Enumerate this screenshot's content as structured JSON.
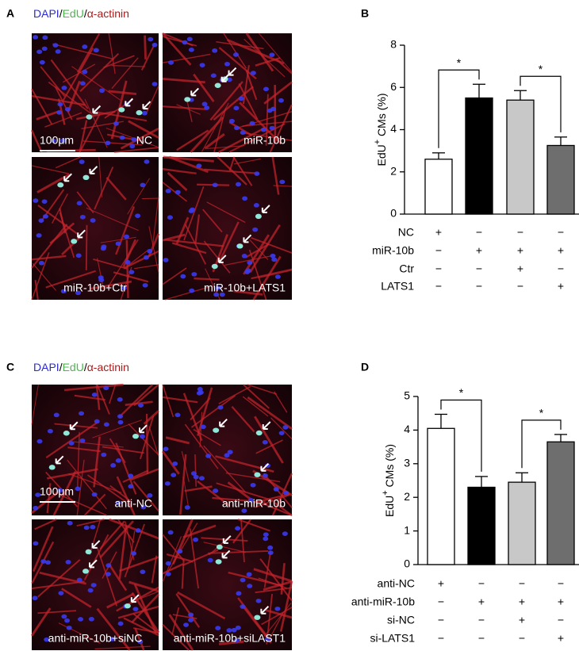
{
  "panels": [
    {
      "letter": "A",
      "legend": [
        {
          "text": "DAPI",
          "color": "#2a2ad0"
        },
        {
          "text": "/",
          "color": "#000000"
        },
        {
          "text": "EdU",
          "color": "#4cb84c"
        },
        {
          "text": "/",
          "color": "#000000"
        },
        {
          "text": "α-actinin",
          "color": "#b01818"
        }
      ],
      "scale_bar": "100μm",
      "images": [
        {
          "label": "NC"
        },
        {
          "label": "miR-10b"
        },
        {
          "label": "miR-10b+Ctr"
        },
        {
          "label": "miR-10b+LATS1"
        }
      ]
    },
    {
      "letter": "C",
      "legend": [
        {
          "text": "DAPI",
          "color": "#2a2ad0"
        },
        {
          "text": "/",
          "color": "#000000"
        },
        {
          "text": "EdU",
          "color": "#4cb84c"
        },
        {
          "text": "/",
          "color": "#000000"
        },
        {
          "text": "α-actinin",
          "color": "#b01818"
        }
      ],
      "scale_bar": "100μm",
      "images": [
        {
          "label": "anti-NC"
        },
        {
          "label": "anti-miR-10b"
        },
        {
          "label": "anti-miR-10b+siNC"
        },
        {
          "label": "anti-miR-10b+siLAST1"
        }
      ]
    }
  ],
  "chart_data": [
    {
      "type": "bar",
      "letter": "B",
      "y_label": {
        "main": "EdU",
        "sup": "+",
        "rest": " CMs (%)"
      },
      "values": [
        2.6,
        5.5,
        5.4,
        3.25
      ],
      "errors": [
        0.3,
        0.65,
        0.45,
        0.4
      ],
      "colors": [
        "#ffffff",
        "#000000",
        "#c8c8c8",
        "#6e6e6e"
      ],
      "ylim": [
        0,
        8
      ],
      "yticks": [
        0,
        2,
        4,
        6,
        8
      ],
      "significance": [
        {
          "label": "*",
          "bars": [
            0,
            1
          ]
        },
        {
          "label": "*",
          "bars": [
            2,
            3
          ]
        }
      ],
      "treatments": [
        {
          "label": "NC",
          "signs": [
            "+",
            "−",
            "−",
            "−"
          ]
        },
        {
          "label": "miR-10b",
          "signs": [
            "−",
            "+",
            "+",
            "+"
          ]
        },
        {
          "label": "Ctr",
          "signs": [
            "−",
            "−",
            "+",
            "−"
          ]
        },
        {
          "label": "LATS1",
          "signs": [
            "−",
            "−",
            "−",
            "+"
          ]
        }
      ]
    },
    {
      "type": "bar",
      "letter": "D",
      "y_label": {
        "main": "EdU",
        "sup": "+",
        "rest": " CMs (%)"
      },
      "values": [
        4.05,
        2.3,
        2.45,
        3.65
      ],
      "errors": [
        0.42,
        0.32,
        0.28,
        0.22
      ],
      "colors": [
        "#ffffff",
        "#000000",
        "#c8c8c8",
        "#6e6e6e"
      ],
      "ylim": [
        0,
        5
      ],
      "yticks": [
        0,
        1,
        2,
        3,
        4,
        5
      ],
      "significance": [
        {
          "label": "*",
          "bars": [
            0,
            1
          ]
        },
        {
          "label": "*",
          "bars": [
            2,
            3
          ]
        }
      ],
      "treatments": [
        {
          "label": "anti-NC",
          "signs": [
            "+",
            "−",
            "−",
            "−"
          ]
        },
        {
          "label": "anti-miR-10b",
          "signs": [
            "−",
            "+",
            "+",
            "+"
          ]
        },
        {
          "label": "si-NC",
          "signs": [
            "−",
            "−",
            "+",
            "−"
          ]
        },
        {
          "label": "si-LATS1",
          "signs": [
            "−",
            "−",
            "−",
            "+"
          ]
        }
      ]
    }
  ]
}
